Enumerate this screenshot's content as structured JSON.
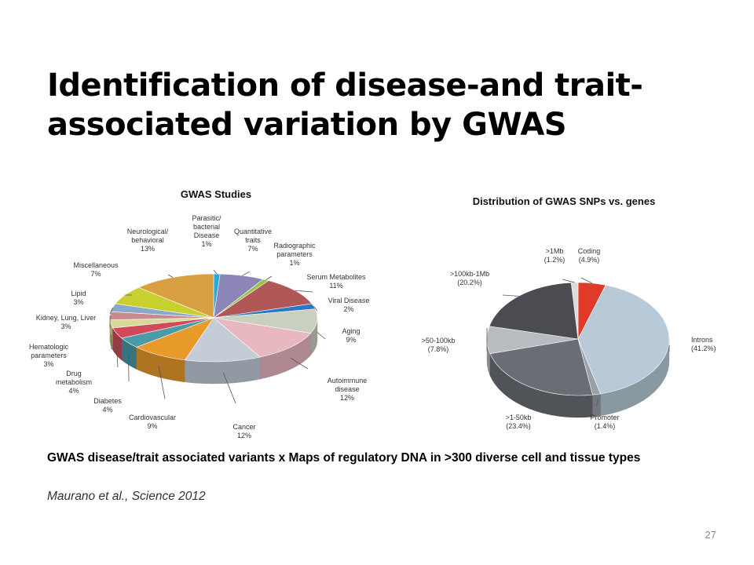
{
  "slide": {
    "title": "Identification of disease-and trait-associated variation by GWAS",
    "caption": "GWAS disease/trait associated variants x Maps of regulatory DNA in >300 diverse cell and tissue types",
    "citation": "Maurano et al., Science 2012",
    "page_number": "27"
  },
  "chart_data": [
    {
      "type": "pie",
      "title": "GWAS Studies",
      "style": "3d",
      "slices": [
        {
          "lines": [
            "Parasitic/",
            "bacterial",
            "Disease",
            "1%"
          ],
          "value": 1,
          "color": "#2aa8d8"
        },
        {
          "lines": [
            "Quantitative",
            "traits",
            "7%"
          ],
          "value": 7,
          "color": "#8c86b8"
        },
        {
          "lines": [
            "Radiographic",
            "parameters",
            "1%"
          ],
          "value": 1,
          "color": "#9ac24a"
        },
        {
          "lines": [
            "Serum Metabolites",
            "11%"
          ],
          "value": 11,
          "color": "#b05858"
        },
        {
          "lines": [
            "Viral Disease",
            "2%"
          ],
          "value": 2,
          "color": "#2a78c8"
        },
        {
          "lines": [
            "Aging",
            "9%"
          ],
          "value": 9,
          "color": "#c8d0c0"
        },
        {
          "lines": [
            "Autoimmune",
            "disease",
            "12%"
          ],
          "value": 12,
          "color": "#e8b8c0"
        },
        {
          "lines": [
            "Cancer",
            "12%"
          ],
          "value": 12,
          "color": "#c4ccd8"
        },
        {
          "lines": [
            "Cardiovascular",
            "9%"
          ],
          "value": 9,
          "color": "#e89a2a"
        },
        {
          "lines": [
            "Diabetes",
            "4%"
          ],
          "value": 4,
          "color": "#4a9aa8"
        },
        {
          "lines": [
            "Drug",
            "metabolism",
            "4%"
          ],
          "value": 4,
          "color": "#d04a5a"
        },
        {
          "lines": [
            "Hematologic",
            "parameters",
            "3%"
          ],
          "value": 3,
          "color": "#d8d898"
        },
        {
          "lines": [
            "Kidney, Lung, Liver",
            "3%"
          ],
          "value": 3,
          "color": "#c88a8a"
        },
        {
          "lines": [
            "Lipid",
            "3%"
          ],
          "value": 3,
          "color": "#8aa8c8"
        },
        {
          "lines": [
            "Miscellaneous",
            "7%"
          ],
          "value": 7,
          "color": "#c8d030"
        },
        {
          "lines": [
            "Neurological/",
            "behavioral",
            "13%"
          ],
          "value": 13,
          "color": "#d8a040"
        }
      ]
    },
    {
      "type": "pie",
      "title": "Distribution of GWAS SNPs vs. genes",
      "style": "3d",
      "slices": [
        {
          "lines": [
            "Coding",
            "(4.9%)"
          ],
          "value": 4.9,
          "color": "#e03a2a"
        },
        {
          "lines": [
            "Introns",
            "(41.2%)"
          ],
          "value": 41.2,
          "color": "#b8cad8"
        },
        {
          "lines": [
            "Promoter",
            "(1.4%)"
          ],
          "value": 1.4,
          "color": "#9aa0a8"
        },
        {
          "lines": [
            ">1-50kb",
            "(23.4%)"
          ],
          "value": 23.4,
          "color": "#6a6e74"
        },
        {
          "lines": [
            ">50-100kb",
            "(7.8%)"
          ],
          "value": 7.8,
          "color": "#b8bcc0"
        },
        {
          "lines": [
            ">100kb-1Mb",
            "(20.2%)"
          ],
          "value": 20.2,
          "color": "#4a4c52"
        },
        {
          "lines": [
            ">1Mb",
            "(1.2%)"
          ],
          "value": 1.2,
          "color": "#dcdcdc"
        }
      ]
    }
  ]
}
